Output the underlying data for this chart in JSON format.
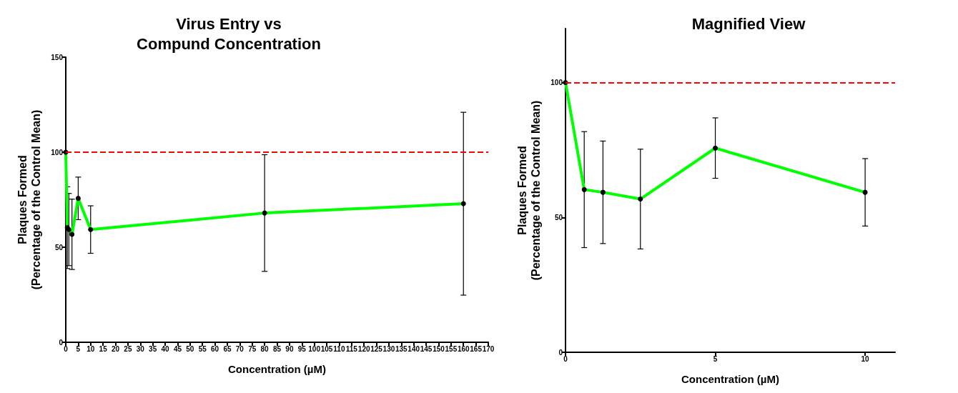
{
  "chart_data": [
    {
      "type": "line",
      "title": "Virus Entry vs\nCompund Concentration",
      "xlabel": "Concentration (µM)",
      "ylabel": "Plaques Formed\n(Percentage of the Control Mean)",
      "x": [
        0,
        0.625,
        1.25,
        2.5,
        5,
        10,
        80,
        160
      ],
      "series": [
        {
          "color": "#00ff00",
          "values": [
            100,
            60.3,
            59.3,
            56.8,
            75.7,
            59.3,
            68,
            72.9
          ],
          "errors": [
            null,
            21.5,
            19,
            18.5,
            11.2,
            12.5,
            30.7,
            48.1
          ]
        }
      ],
      "xlim": [
        0,
        170
      ],
      "xticks": [
        0,
        5,
        10,
        15,
        20,
        25,
        30,
        35,
        40,
        45,
        50,
        55,
        60,
        65,
        70,
        75,
        80,
        85,
        90,
        95,
        100,
        105,
        110,
        115,
        120,
        125,
        130,
        135,
        140,
        145,
        150,
        155,
        160,
        165,
        170
      ],
      "ylim": [
        0,
        150
      ],
      "yticks": [
        0,
        50,
        100,
        150
      ],
      "ref_lines": [
        {
          "axis": "y",
          "value": 100,
          "color": "#ff0000",
          "line_style": "dashed"
        }
      ],
      "marker": "circle",
      "grid": false
    },
    {
      "type": "line",
      "title": "Magnified View",
      "xlabel": "Concentration (µM)",
      "ylabel": "Plaques Formed\n(Percentage of the Control Mean)",
      "x": [
        0,
        0.625,
        1.25,
        2.5,
        5,
        10
      ],
      "series": [
        {
          "color": "#00ff00",
          "values": [
            100,
            60.3,
            59.3,
            56.8,
            75.7,
            59.3
          ],
          "errors": [
            null,
            21.5,
            19,
            18.5,
            11.2,
            12.5
          ]
        }
      ],
      "xlim": [
        0,
        11
      ],
      "xticks": [
        0,
        5,
        10
      ],
      "ylim": [
        0,
        120
      ],
      "yticks": [
        0,
        50,
        100
      ],
      "ref_lines": [
        {
          "axis": "y",
          "value": 100,
          "color": "#ff0000",
          "line_style": "dashed"
        }
      ],
      "marker": "circle",
      "grid": false
    }
  ]
}
